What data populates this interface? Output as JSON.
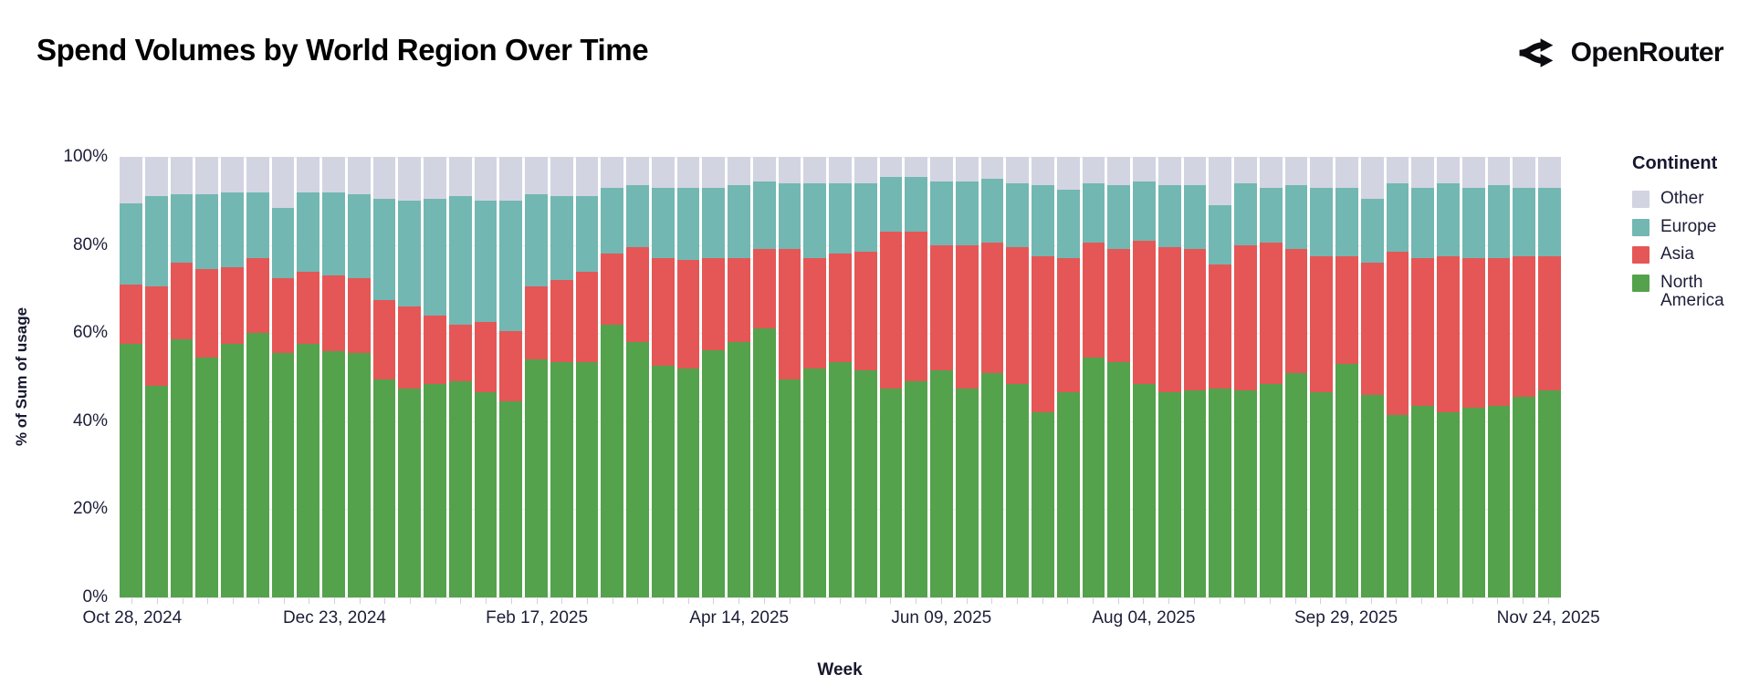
{
  "header": {
    "title": "Spend Volumes by World Region Over Time",
    "brand": "OpenRouter"
  },
  "legend": {
    "title": "Continent",
    "items": [
      {
        "label": "Other",
        "color": "#d2d4e2"
      },
      {
        "label": "Europe",
        "color": "#72b7b2"
      },
      {
        "label": "Asia",
        "color": "#e45756"
      },
      {
        "label": "North America",
        "color": "#54a24b"
      }
    ]
  },
  "axes": {
    "y_title": "% of Sum of usage",
    "x_title": "Week",
    "y_ticks": [
      "0%",
      "20%",
      "40%",
      "60%",
      "80%",
      "100%"
    ],
    "x_tick_labels": [
      "Oct 28, 2024",
      "Dec 23, 2024",
      "Feb 17, 2025",
      "Apr 14, 2025",
      "Jun 09, 2025",
      "Aug 04, 2025",
      "Sep 29, 2025",
      "Nov 24, 2025"
    ],
    "x_tick_label_indices": [
      0,
      8,
      16,
      24,
      32,
      40,
      48,
      56
    ]
  },
  "colors": {
    "background": "#ffffff",
    "axis_text": "#1c1e38",
    "grid": "#ececf2",
    "north_america": "#54a24b",
    "asia": "#e45756",
    "europe": "#72b7b2",
    "other": "#d2d4e2"
  },
  "chart_data": {
    "type": "bar",
    "stacked": true,
    "unit": "percent_of_total",
    "title": "Spend Volumes by World Region Over Time",
    "xlabel": "Week",
    "ylabel": "% of Sum of usage",
    "ylim": [
      0,
      100
    ],
    "legend_position": "right",
    "stack_order_bottom_to_top": [
      "North America",
      "Asia",
      "Europe",
      "Other"
    ],
    "x": [
      "Oct 28, 2024",
      "Nov 04, 2024",
      "Nov 11, 2024",
      "Nov 18, 2024",
      "Nov 25, 2024",
      "Dec 02, 2024",
      "Dec 09, 2024",
      "Dec 16, 2024",
      "Dec 23, 2024",
      "Dec 30, 2024",
      "Jan 06, 2025",
      "Jan 13, 2025",
      "Jan 20, 2025",
      "Jan 27, 2025",
      "Feb 03, 2025",
      "Feb 10, 2025",
      "Feb 17, 2025",
      "Feb 24, 2025",
      "Mar 03, 2025",
      "Mar 10, 2025",
      "Mar 17, 2025",
      "Mar 24, 2025",
      "Mar 31, 2025",
      "Apr 07, 2025",
      "Apr 14, 2025",
      "Apr 21, 2025",
      "Apr 28, 2025",
      "May 05, 2025",
      "May 12, 2025",
      "May 19, 2025",
      "May 26, 2025",
      "Jun 02, 2025",
      "Jun 09, 2025",
      "Jun 16, 2025",
      "Jun 23, 2025",
      "Jun 30, 2025",
      "Jul 07, 2025",
      "Jul 14, 2025",
      "Jul 21, 2025",
      "Jul 28, 2025",
      "Aug 04, 2025",
      "Aug 11, 2025",
      "Aug 18, 2025",
      "Aug 25, 2025",
      "Sep 01, 2025",
      "Sep 08, 2025",
      "Sep 15, 2025",
      "Sep 22, 2025",
      "Sep 29, 2025",
      "Oct 06, 2025",
      "Oct 13, 2025",
      "Oct 20, 2025",
      "Oct 27, 2025",
      "Nov 03, 2025",
      "Nov 10, 2025",
      "Nov 17, 2025",
      "Nov 24, 2025"
    ],
    "series": [
      {
        "name": "North America",
        "color": "#54a24b",
        "values": [
          57.5,
          48,
          58.5,
          54.5,
          57.5,
          60,
          55.5,
          57.5,
          56,
          55.5,
          49.5,
          47.5,
          48.5,
          49,
          46.5,
          44.5,
          54,
          53.5,
          53.5,
          62,
          58,
          52.5,
          52,
          56,
          58,
          61,
          49.5,
          52,
          53.5,
          51.5,
          47.5,
          49,
          51.5,
          47.5,
          51,
          48.5,
          42,
          46.5,
          54.5,
          53.5,
          48.5,
          46.5,
          47,
          47.5,
          47,
          48.5,
          51,
          46.5,
          53,
          46,
          41.5,
          43.5,
          42,
          43,
          43.5,
          45.5,
          47
        ]
      },
      {
        "name": "Asia",
        "color": "#e45756",
        "values": [
          13.5,
          22.5,
          17.5,
          20,
          17.5,
          17,
          17,
          16.5,
          17,
          17,
          18,
          18.5,
          15.5,
          13,
          16,
          16,
          16.5,
          18.5,
          20.5,
          16,
          21.5,
          24.5,
          24.5,
          21,
          19,
          18,
          29.5,
          25,
          24.5,
          27,
          35.5,
          34,
          28.5,
          32.5,
          29.5,
          31,
          35.5,
          30.5,
          26,
          25.5,
          32.5,
          33,
          32,
          28,
          33,
          32,
          28,
          31,
          24.5,
          30,
          37,
          33.5,
          35.5,
          34,
          33.5,
          32,
          30.5
        ]
      },
      {
        "name": "Europe",
        "color": "#72b7b2",
        "values": [
          18.5,
          20.5,
          15.5,
          17,
          17,
          15,
          16,
          18,
          19,
          19,
          23,
          24,
          26.5,
          29,
          27.5,
          29.5,
          21,
          19,
          17,
          15,
          14,
          16,
          16.5,
          16,
          16.5,
          15.5,
          15,
          17,
          16,
          15.5,
          12.5,
          12.5,
          14.5,
          14.5,
          14.5,
          14.5,
          16,
          15.5,
          13.5,
          14.5,
          13.5,
          14,
          14.5,
          13.5,
          14,
          12.5,
          14.5,
          15.5,
          15.5,
          14.5,
          15.5,
          16,
          16.5,
          16,
          16.5,
          15.5,
          15.5
        ]
      },
      {
        "name": "Other",
        "color": "#d2d4e2",
        "values": [
          10.5,
          9,
          8.5,
          8.5,
          8,
          8,
          11.5,
          8,
          8,
          8.5,
          9.5,
          10,
          9.5,
          9,
          10,
          10,
          8.5,
          9,
          9,
          7,
          6.5,
          7,
          7,
          7,
          6.5,
          5.5,
          6,
          6,
          6,
          6,
          4.5,
          4.5,
          5.5,
          5.5,
          5,
          6,
          6.5,
          7.5,
          6,
          6.5,
          5.5,
          6.5,
          6.5,
          11,
          6,
          7,
          6.5,
          7,
          7,
          9.5,
          6,
          7,
          6,
          7,
          6.5,
          7,
          7
        ]
      }
    ]
  }
}
